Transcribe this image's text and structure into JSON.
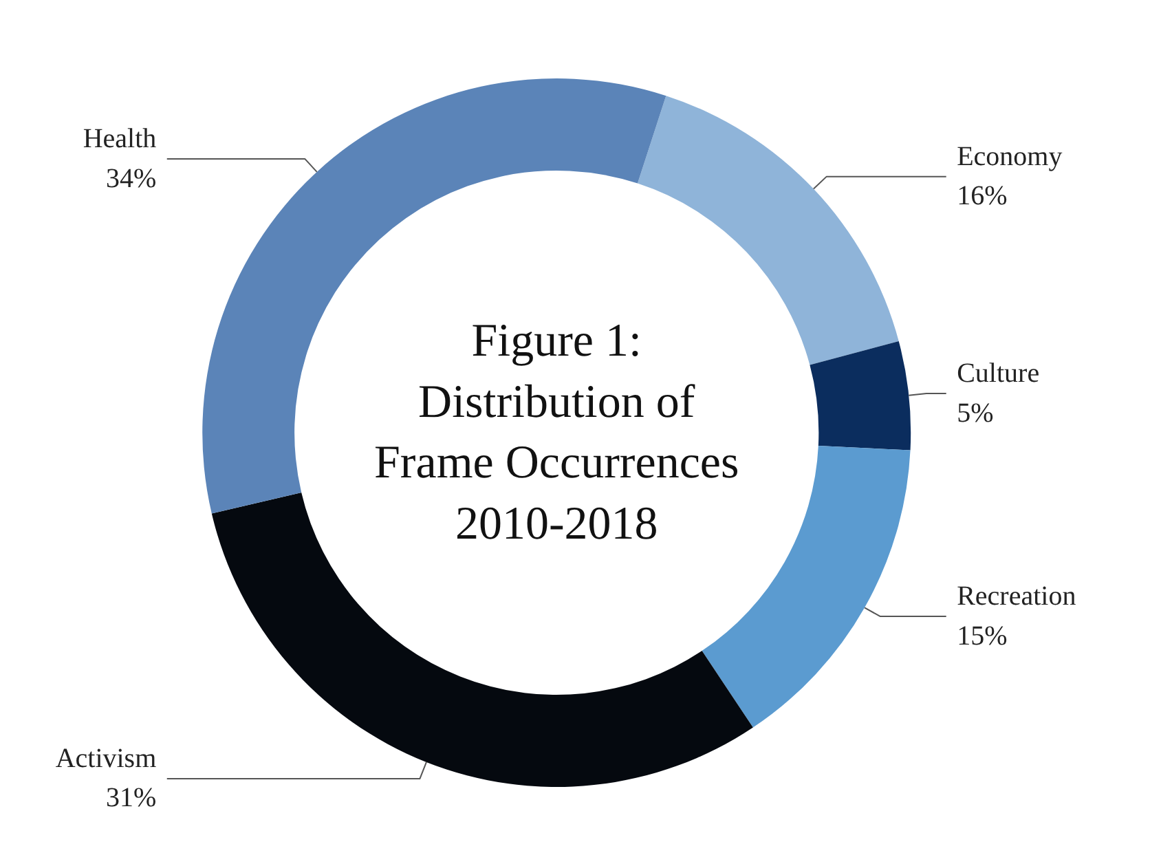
{
  "chart_data": {
    "type": "donut",
    "title": "Figure 1:\nDistribution of\nFrame Occurrences\n2010-2018",
    "categories": [
      "Economy",
      "Culture",
      "Recreation",
      "Activism",
      "Health"
    ],
    "values": [
      16,
      5,
      15,
      31,
      34
    ],
    "value_labels": [
      "16%",
      "5%",
      "15%",
      "31%",
      "34%"
    ],
    "colors": [
      "#8fb4d9",
      "#0b2d5e",
      "#5b9bd0",
      "#05090f",
      "#5b84b8"
    ]
  }
}
